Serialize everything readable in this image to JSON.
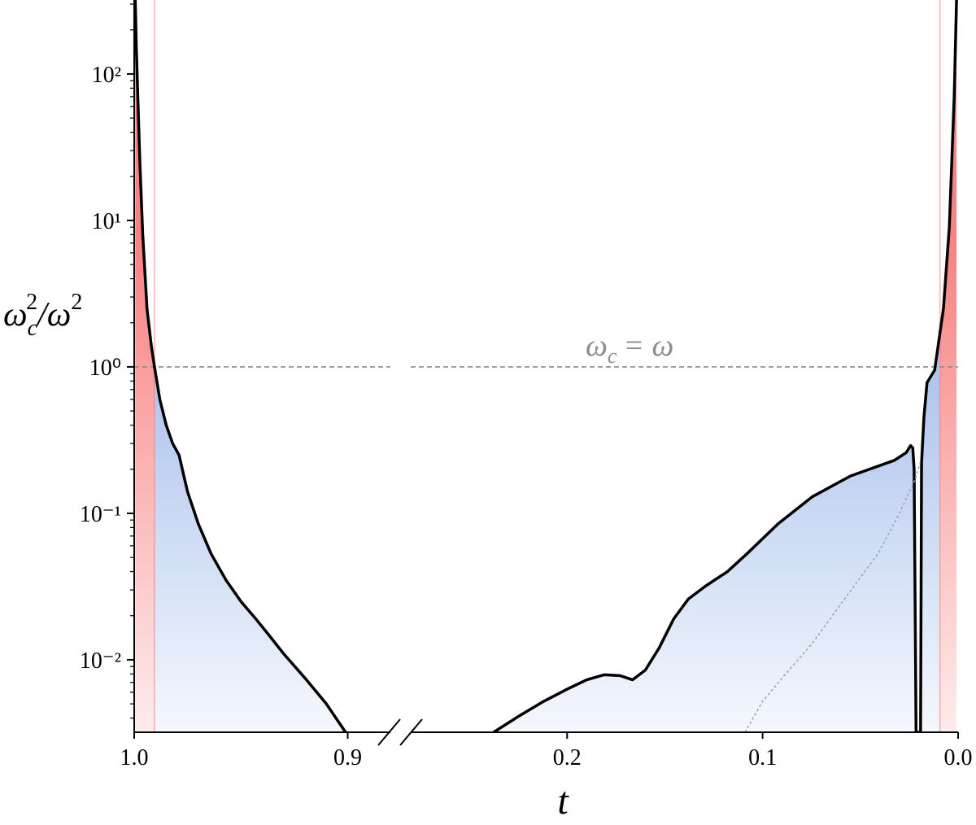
{
  "chart_data": [
    {
      "type": "line",
      "xlabel": "t",
      "ylabel": [
        "ω",
        "c",
        "2",
        "/ω",
        "2"
      ],
      "xlim": [
        1,
        0.88
      ],
      "xticks": [
        {
          "value": 1,
          "label": "1.0"
        },
        0.9
      ],
      "ylim": [
        0.0032,
        320
      ],
      "log_y": true,
      "yticks": [
        {
          "value": 0.01,
          "label": "10⁻²"
        },
        {
          "value": 0.1,
          "label": "10⁻¹"
        },
        {
          "value": 1,
          "label": "10⁰"
        },
        {
          "value": 10,
          "label": "10¹"
        },
        {
          "value": 100,
          "label": "10²"
        }
      ],
      "yminorticks": [
        0.004,
        0.005,
        0.006,
        0.007,
        0.008,
        0.009,
        0.02,
        0.03,
        0.04,
        0.05,
        0.06,
        0.07,
        0.08,
        0.09,
        0.2,
        0.3,
        0.4,
        0.5,
        0.6,
        0.7,
        0.8,
        0.9,
        2,
        3,
        4,
        5,
        6,
        7,
        8,
        9,
        20,
        30,
        40,
        50,
        60,
        70,
        80,
        90,
        200,
        300
      ],
      "hline": 1,
      "hline_color": "#8c8c8c",
      "fill_color": "#a9c1ec",
      "highlight_color": "#f77c7c",
      "highlight_span": [
        1,
        0.9905
      ],
      "series": [
        {
          "color": "#000000",
          "style": "solid",
          "x": [
            0.9995,
            0.999,
            0.998,
            0.9973,
            0.996,
            0.994,
            0.992,
            0.9905,
            0.988,
            0.985,
            0.982,
            0.979,
            0.975,
            0.97,
            0.964,
            0.957,
            0.95,
            0.943,
            0.937,
            0.93,
            0.92,
            0.91,
            0.901
          ],
          "values": [
            320,
            150,
            50,
            24,
            8,
            2.5,
            1.4,
            1,
            0.6,
            0.4,
            0.3,
            0.25,
            0.14,
            0.085,
            0.053,
            0.035,
            0.025,
            0.019,
            0.0148,
            0.011,
            0.0075,
            0.005,
            0.0032
          ]
        }
      ]
    },
    {
      "type": "line",
      "xlim": [
        0.28,
        0
      ],
      "xticks": [
        0.2,
        0.1,
        {
          "value": 0,
          "label": "0.0"
        }
      ],
      "ylim": [
        0.0032,
        320
      ],
      "log_y": true,
      "hline": 1,
      "hline_color": "#8c8c8c",
      "annotation": [
        "ω",
        "c",
        "= ω"
      ],
      "fill_color": "#a9c1ec",
      "highlight_color": "#f77c7c",
      "highlight_span": [
        0.0093,
        0
      ],
      "series": [
        {
          "color": "#000000",
          "style": "solid",
          "x": [
            0.2376,
            0.225,
            0.212,
            0.2,
            0.19,
            0.181,
            0.173,
            0.1665,
            0.16,
            0.153,
            0.1455,
            0.138,
            0.129,
            0.118,
            0.108,
            0.092,
            0.0745,
            0.055,
            0.0326,
            0.0265,
            0.0243,
            0.0232,
            0.0225,
            0.0215,
            0.0192,
            0.0187,
            0.0175,
            0.0159,
            0.012,
            0.0075,
            0.0045,
            0.0033,
            0.002,
            0.0008
          ],
          "values": [
            0.0032,
            0.0041,
            0.0052,
            0.0063,
            0.0073,
            0.0079,
            0.0078,
            0.0073,
            0.0085,
            0.012,
            0.019,
            0.026,
            0.032,
            0.04,
            0.053,
            0.085,
            0.13,
            0.18,
            0.23,
            0.26,
            0.29,
            0.28,
            0.2,
            0.0032,
            0.0032,
            0.22,
            0.45,
            0.78,
            0.95,
            2.5,
            9,
            24,
            70,
            320
          ]
        },
        {
          "color": "#9aa0ab",
          "style": "dotted",
          "x": [
            0.109,
            0.1,
            0.09,
            0.0745,
            0.06,
            0.041,
            0.03,
            0.022,
            0.0195
          ],
          "values": [
            0.0032,
            0.0052,
            0.0075,
            0.013,
            0.024,
            0.053,
            0.1,
            0.17,
            0.22
          ]
        }
      ]
    }
  ]
}
